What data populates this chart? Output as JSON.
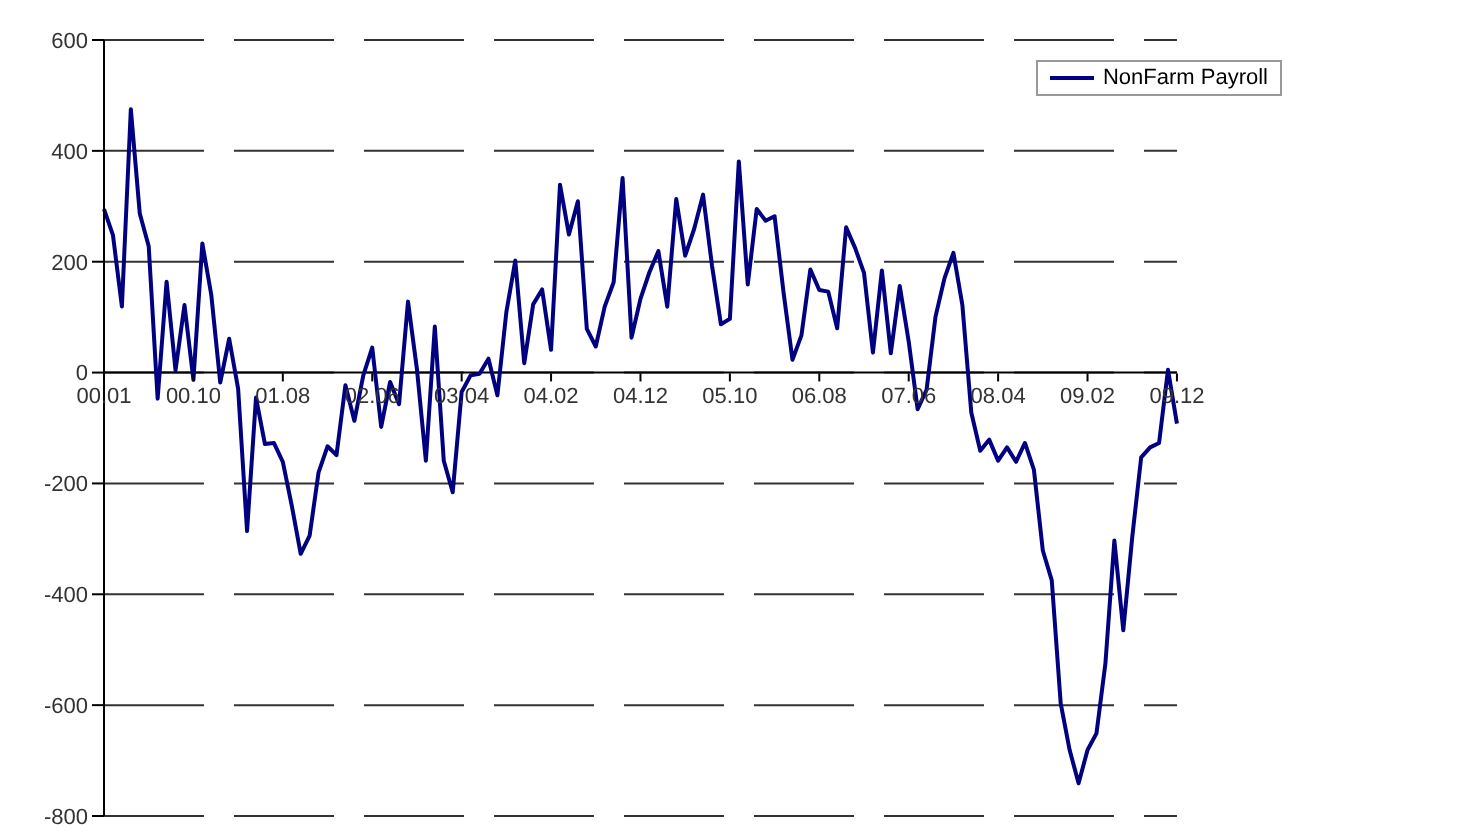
{
  "chart_data": {
    "type": "line",
    "categories": [
      "00.01",
      null,
      null,
      null,
      null,
      null,
      null,
      null,
      null,
      null,
      "00.10",
      null,
      null,
      null,
      null,
      null,
      null,
      null,
      null,
      null,
      "01.08",
      null,
      null,
      null,
      null,
      null,
      null,
      null,
      null,
      null,
      "02.06",
      null,
      null,
      null,
      null,
      null,
      null,
      null,
      null,
      null,
      "03.04",
      null,
      null,
      null,
      null,
      null,
      null,
      null,
      null,
      null,
      "04.02",
      null,
      null,
      null,
      null,
      null,
      null,
      null,
      null,
      null,
      "04.12",
      null,
      null,
      null,
      null,
      null,
      null,
      null,
      null,
      null,
      "05.10",
      null,
      null,
      null,
      null,
      null,
      null,
      null,
      null,
      null,
      "06.08",
      null,
      null,
      null,
      null,
      null,
      null,
      null,
      null,
      null,
      "07.06",
      null,
      null,
      null,
      null,
      null,
      null,
      null,
      null,
      null,
      "08.04",
      null,
      null,
      null,
      null,
      null,
      null,
      null,
      null,
      null,
      "09.02",
      null,
      null,
      null,
      null,
      null,
      null,
      null,
      null,
      null,
      "09.12"
    ],
    "series": [
      {
        "name": "NonFarm Payroll",
        "color": "#000080",
        "values": [
          295,
          248,
          119,
          475,
          287,
          228,
          -47,
          164,
          4,
          122,
          -13,
          233,
          140,
          -18,
          61,
          -29,
          -286,
          -45,
          -129,
          -127,
          -161,
          -240,
          -327,
          -294,
          -180,
          -133,
          -149,
          -23,
          -87,
          -5,
          45,
          -98,
          -17,
          -57,
          128,
          6,
          -159,
          83,
          -159,
          -216,
          -35,
          -5,
          -2,
          25,
          -41,
          109,
          202,
          17,
          123,
          150,
          41,
          339,
          249,
          309,
          79,
          47,
          119,
          163,
          351,
          63,
          133,
          181,
          219,
          119,
          313,
          211,
          259,
          321,
          193,
          87,
          97,
          381,
          159,
          295,
          274,
          282,
          145,
          23,
          67,
          186,
          149,
          146,
          80,
          262,
          225,
          180,
          36,
          184,
          35,
          156,
          56,
          -66,
          -31,
          101,
          170,
          216,
          122,
          -72,
          -141,
          -121,
          -159,
          -135,
          -161,
          -127,
          -175,
          -321,
          -375,
          -597,
          -681,
          -741,
          -681,
          -651,
          -525,
          -303,
          -465,
          -297,
          -153,
          -135,
          -127,
          5,
          -92
        ]
      }
    ],
    "ylim": [
      -800,
      600
    ],
    "yticks": [
      -800,
      -600,
      -400,
      -200,
      0,
      200,
      400,
      600
    ],
    "grid": "y",
    "legend": "top right",
    "marker": "none",
    "line_style": "solid"
  }
}
